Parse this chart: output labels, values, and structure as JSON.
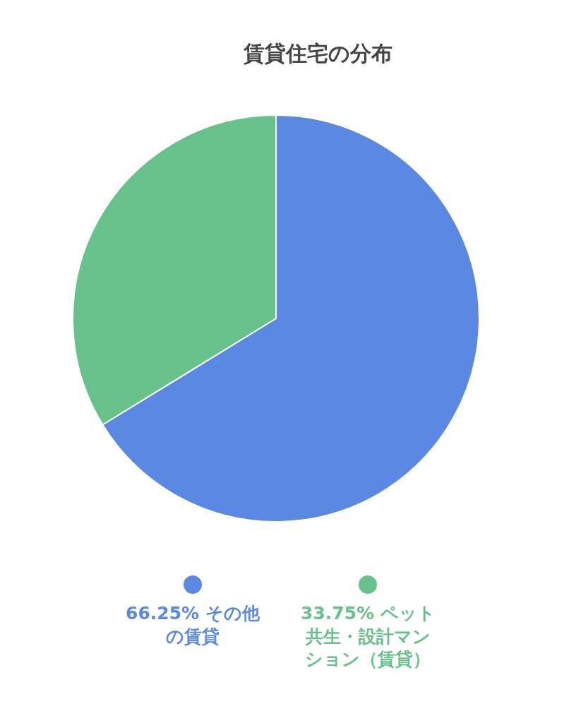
{
  "chart_data": {
    "type": "pie",
    "title": "賃貸住宅の分布",
    "categories": [
      "その他の賃貸",
      "ペット共生・設計マンション（賃貸）"
    ],
    "values": [
      66.25,
      33.75
    ],
    "colors": [
      "#5b88e0",
      "#67c18a"
    ],
    "value_labels": [
      "66.25%",
      "33.75%"
    ],
    "legend": "bottom"
  }
}
